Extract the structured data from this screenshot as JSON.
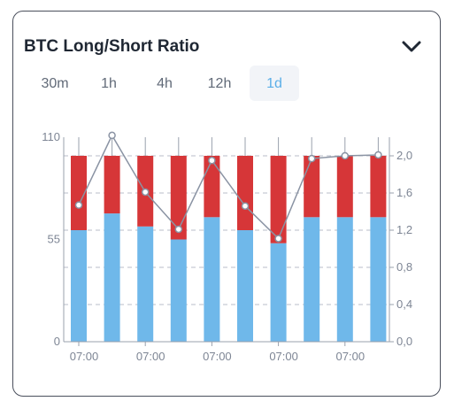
{
  "header": {
    "title": "BTC Long/Short Ratio",
    "collapse_icon": "chevron-down-icon"
  },
  "tabs": [
    {
      "label": "30m",
      "active": false
    },
    {
      "label": "1h",
      "active": false
    },
    {
      "label": "4h",
      "active": false
    },
    {
      "label": "12h",
      "active": false
    },
    {
      "label": "1d",
      "active": true
    }
  ],
  "colors": {
    "long": "#6fb8ea",
    "short": "#d63638",
    "ratio_line": "#8a93a3",
    "accent": "#5aaee8"
  },
  "chart_data": {
    "type": "bar",
    "categories": [
      "07:00",
      "",
      "07:00",
      "",
      "07:00",
      "",
      "07:00",
      "",
      "07:00",
      ""
    ],
    "series": [
      {
        "values": [
          60,
          69,
          62,
          55,
          67,
          60,
          53,
          67,
          67,
          67
        ]
      },
      {
        "values": [
          40,
          31,
          38,
          45,
          33,
          40,
          47,
          33,
          33,
          33
        ]
      },
      {
        "values": [
          1.47,
          2.22,
          1.61,
          1.21,
          1.95,
          1.46,
          1.11,
          1.97,
          2.0,
          2.01
        ]
      }
    ],
    "y_left": {
      "ylim": [
        0,
        110
      ],
      "ticks": [
        "0",
        "55",
        "110"
      ]
    },
    "y_right": {
      "ylim": [
        0,
        2.2
      ],
      "ticks": [
        "0,0",
        "0,4",
        "0,8",
        "1,2",
        "1,6",
        "2,0"
      ]
    },
    "grid": true
  }
}
